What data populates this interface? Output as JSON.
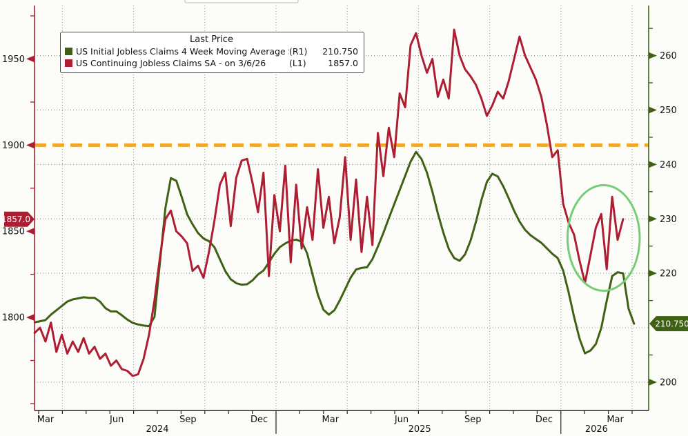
{
  "legend": {
    "title": "Last Price",
    "series": [
      {
        "label": "US Initial Jobless Claims 4 Week Moving Average SA",
        "axis_tag": "(R1)",
        "value": "210.750",
        "color_key": "green"
      },
      {
        "label": "US Continuing Jobless Claims SA -  on 3/6/26",
        "axis_tag": "(L1)",
        "value": "1857.0",
        "color_key": "red"
      }
    ]
  },
  "badges": {
    "left_last_price": "1857.0",
    "right_last_price": "210.750"
  },
  "colors": {
    "red": "#ae1e33",
    "green": "#3f6114",
    "orange": "#efa72e",
    "grid": "#8a8a8a",
    "axis_text": "#111111",
    "x_axis_line": "#222222",
    "ellipse": "#77cc77",
    "background": "#fcfcf9"
  },
  "chart_data": {
    "type": "line",
    "title": "Last Price",
    "grid": true,
    "x_axis": {
      "month0": "Mar 2024",
      "quarter_tick_months": [
        0,
        3,
        6,
        9,
        12,
        15,
        18,
        21,
        24
      ],
      "quarter_labels": [
        "Mar",
        "Jun",
        "Sep",
        "Dec",
        "Mar",
        "Jun",
        "Sep",
        "Dec",
        "Mar"
      ],
      "minor_tick_month_count": 26,
      "gridline_months": [
        1,
        4,
        7,
        10,
        13,
        16,
        19,
        22,
        25
      ],
      "year_separator_months": [
        10,
        22
      ],
      "year_labels": [
        {
          "text": "2024",
          "month": 5
        },
        {
          "text": "2025",
          "month": 16.05
        },
        {
          "text": "2026",
          "month": 23.5
        }
      ]
    },
    "left_axis": {
      "side": "L1",
      "ylim": [
        1746,
        1981
      ],
      "labeled_ticks": [
        1950,
        1900,
        1850,
        1800
      ],
      "minor_ticks": [
        1975,
        1925,
        1875,
        1825,
        1775,
        1750
      ],
      "last_value": 1857.0
    },
    "right_axis": {
      "side": "R1",
      "ylim": [
        194.8,
        269.2
      ],
      "labeled_ticks": [
        260,
        250,
        240,
        230,
        220,
        200
      ],
      "gridline_values": [
        260,
        250,
        240,
        230,
        220,
        210,
        200
      ],
      "minor_ticks": [
        265,
        255,
        245,
        235,
        225,
        215,
        205
      ],
      "last_value": 210.75
    },
    "ref_line": {
      "axis": "L1",
      "value": 1900,
      "style": "dashed",
      "color_key": "orange"
    },
    "annotation_ellipse": {
      "center_month": 23.8,
      "center_value_right": 226.5,
      "rx_months": 1.52,
      "ry_right_units": 9.7
    },
    "series": [
      {
        "name": "US Initial Jobless Claims 4 Week Moving Average SA",
        "axis": "R1",
        "color_key": "green",
        "x_start_month": -0.17,
        "x_end_month": 25.08,
        "values": [
          211,
          211.2,
          211.4,
          212.4,
          213.2,
          214,
          214.8,
          215.2,
          215.4,
          215.6,
          215.5,
          215.5,
          214.8,
          213.6,
          213,
          213,
          212.3,
          211.5,
          210.9,
          210.6,
          210.4,
          210.3,
          212,
          222,
          232,
          237.5,
          237,
          234,
          230.8,
          229,
          227.4,
          226.4,
          225.9,
          224.8,
          222.6,
          220.4,
          218.9,
          218.2,
          217.9,
          218,
          218.7,
          219.8,
          220.5,
          222,
          223.6,
          224.8,
          225.5,
          226,
          226.2,
          225.8,
          223.7,
          219.8,
          216,
          213.3,
          212.4,
          213.2,
          215,
          217.1,
          219.2,
          220.7,
          221,
          221.1,
          222.6,
          224.9,
          227.4,
          230.1,
          232.7,
          235.3,
          237.9,
          240.5,
          242.3,
          241,
          238.5,
          235,
          231,
          227.5,
          224.5,
          222.8,
          222.3,
          223.5,
          226,
          229.5,
          233.5,
          236.8,
          238.3,
          237.8,
          236,
          233.8,
          231.5,
          229.5,
          228,
          227,
          226.3,
          225.6,
          224.6,
          223.6,
          222.8,
          220.5,
          216.5,
          212,
          208,
          205.3,
          205.8,
          207,
          210,
          215,
          219.5,
          220.2,
          220,
          213.5,
          210.75
        ]
      },
      {
        "name": "US Continuing Jobless Claims SA",
        "axis": "L1",
        "color_key": "red",
        "x_start_month": -0.17,
        "x_end_month": 24.62,
        "values": [
          1791,
          1794,
          1786,
          1797,
          1780,
          1790,
          1779,
          1786,
          1780,
          1788,
          1779,
          1783,
          1776,
          1779,
          1772,
          1775,
          1770,
          1769,
          1766,
          1767,
          1776,
          1790,
          1810,
          1835,
          1857,
          1862,
          1850,
          1847,
          1843,
          1827,
          1830,
          1823,
          1838,
          1856,
          1877,
          1884,
          1853,
          1881,
          1891,
          1892,
          1878,
          1861,
          1884,
          1824,
          1871,
          1850,
          1888,
          1832,
          1877,
          1840,
          1864,
          1845,
          1886,
          1852,
          1870,
          1843,
          1858,
          1893,
          1845,
          1880,
          1838,
          1870,
          1842,
          1907,
          1882,
          1910,
          1893,
          1930,
          1922,
          1958,
          1965,
          1952,
          1942,
          1950,
          1928,
          1938,
          1927,
          1967,
          1952,
          1944,
          1940,
          1935,
          1927,
          1917,
          1923,
          1931,
          1927,
          1937,
          1950,
          1963,
          1952,
          1945,
          1938,
          1928,
          1912,
          1893,
          1897,
          1866,
          1855,
          1848,
          1833,
          1820,
          1836,
          1852,
          1860,
          1828,
          1870,
          1845,
          1857
        ]
      }
    ]
  }
}
